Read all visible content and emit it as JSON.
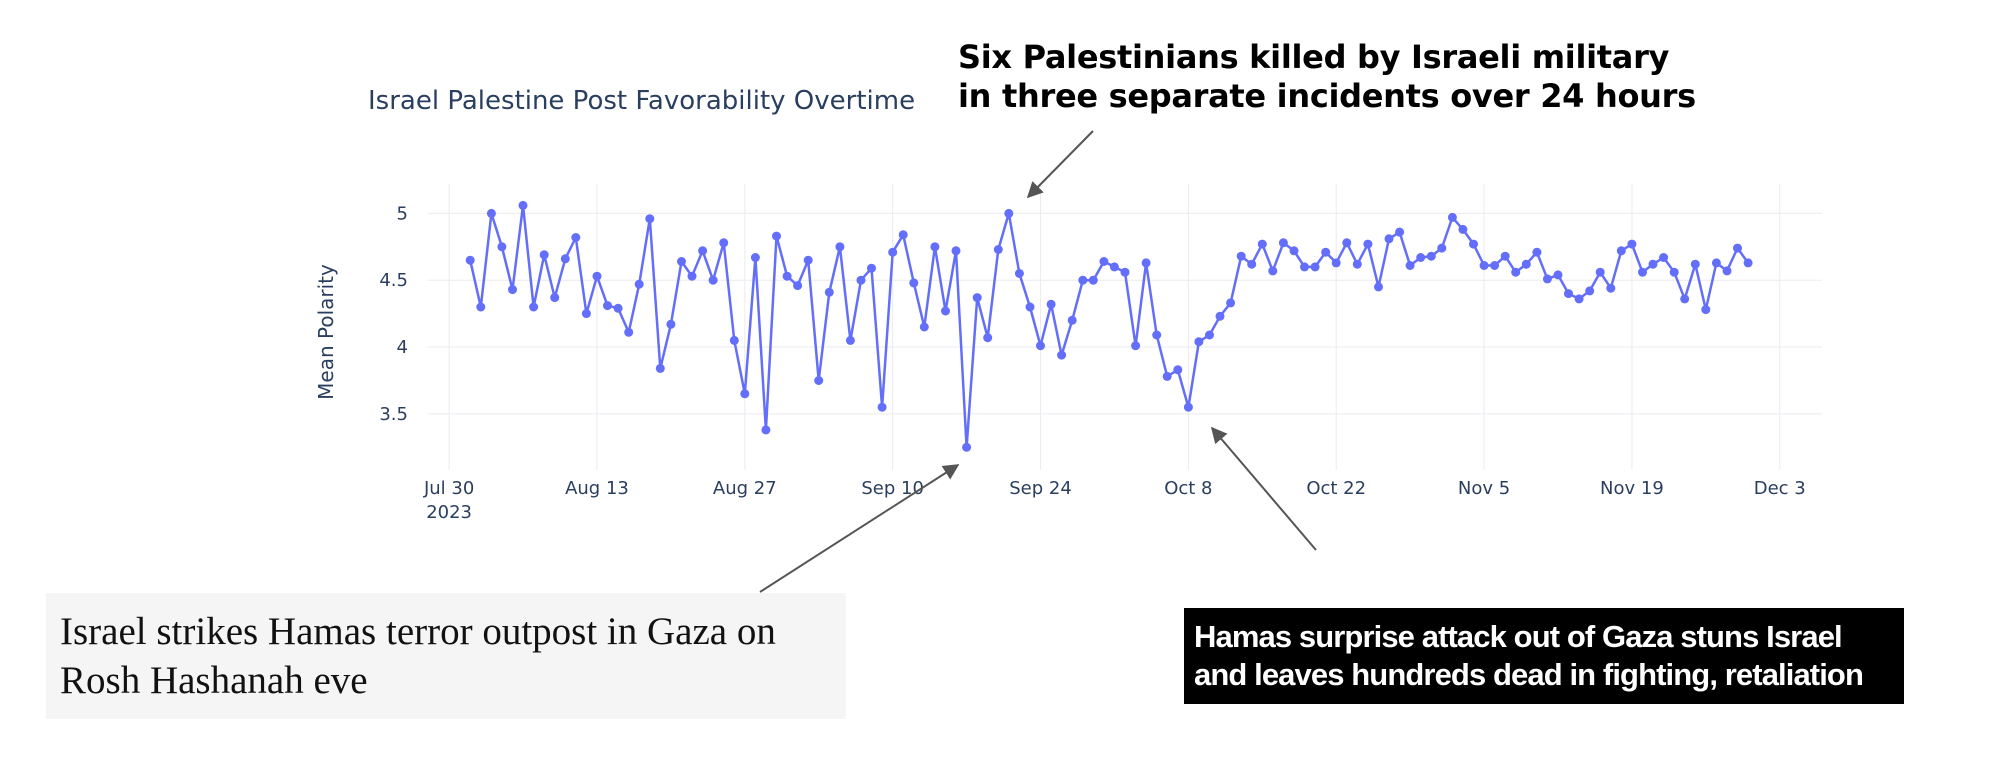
{
  "headlines": {
    "top": "Six Palestinians killed by Israeli military in three separate incidents over 24 hours",
    "left": "Israel strikes Hamas terror outpost in Gaza on Rosh Hashanah eve",
    "right": "Hamas surprise attack out of Gaza stuns Israel and leaves hundreds dead in fighting, retaliation"
  },
  "chart_data": {
    "type": "line",
    "title": "Israel Palestine Post Favorability Overtime",
    "xlabel": "",
    "ylabel": "Mean Polarity",
    "x_start": "2023-08-01",
    "x_ticks": [
      {
        "label": "Jul 30",
        "sublabel": "2023",
        "date": "2023-07-30"
      },
      {
        "label": "Aug 13",
        "date": "2023-08-13"
      },
      {
        "label": "Aug 27",
        "date": "2023-08-27"
      },
      {
        "label": "Sep 10",
        "date": "2023-09-10"
      },
      {
        "label": "Sep 24",
        "date": "2023-09-24"
      },
      {
        "label": "Oct 8",
        "date": "2023-10-08"
      },
      {
        "label": "Oct 22",
        "date": "2023-10-22"
      },
      {
        "label": "Nov 5",
        "date": "2023-11-05"
      },
      {
        "label": "Nov 19",
        "date": "2023-11-19"
      },
      {
        "label": "Dec 3",
        "date": "2023-12-03"
      }
    ],
    "y_ticks": [
      3.5,
      4,
      4.5,
      5
    ],
    "ylim": [
      3.08,
      5.22
    ],
    "xlim": [
      "2023-07-28",
      "2023-12-07"
    ],
    "grid": true,
    "color": "#636efa",
    "series": [
      {
        "name": "",
        "values": [
          4.65,
          4.3,
          5.0,
          4.75,
          4.43,
          5.06,
          4.3,
          4.69,
          4.37,
          4.66,
          4.82,
          4.25,
          4.53,
          4.31,
          4.29,
          4.11,
          4.47,
          4.96,
          3.84,
          4.17,
          4.64,
          4.53,
          4.72,
          4.5,
          4.78,
          4.05,
          3.65,
          4.67,
          3.38,
          4.83,
          4.53,
          4.46,
          4.65,
          3.75,
          4.41,
          4.75,
          4.05,
          4.5,
          4.59,
          3.55,
          4.71,
          4.84,
          4.48,
          4.15,
          4.75,
          4.27,
          4.72,
          3.25,
          4.37,
          4.07,
          4.73,
          5.0,
          4.55,
          4.3,
          4.01,
          4.32,
          3.94,
          4.2,
          4.5,
          4.5,
          4.64,
          4.6,
          4.56,
          4.01,
          4.63,
          4.09,
          3.78,
          3.83,
          3.55,
          4.04,
          4.09,
          4.23,
          4.33,
          4.68,
          4.62,
          4.77,
          4.57,
          4.78,
          4.72,
          4.6,
          4.6,
          4.71,
          4.63,
          4.78,
          4.62,
          4.77,
          4.45,
          4.81,
          4.86,
          4.61,
          4.67,
          4.68,
          4.74,
          4.97,
          4.88,
          4.77,
          4.61,
          4.61,
          4.68,
          4.56,
          4.62,
          4.71,
          4.51,
          4.54,
          4.4,
          4.36,
          4.42,
          4.56,
          4.44,
          4.72,
          4.77,
          4.56,
          4.62,
          4.67,
          4.56,
          4.36,
          4.62,
          4.28,
          4.63,
          4.57,
          4.74,
          4.63
        ]
      }
    ]
  }
}
